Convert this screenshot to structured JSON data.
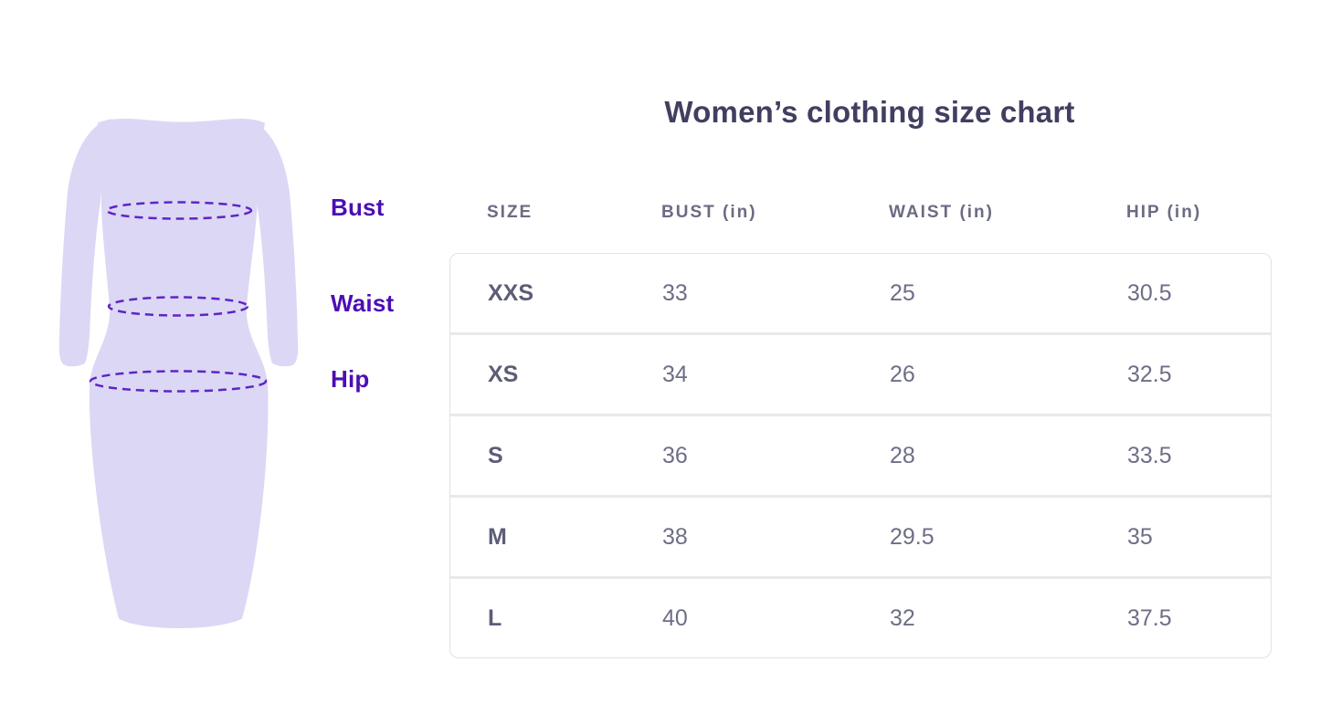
{
  "title": "Women’s clothing size chart",
  "figure": {
    "labels": [
      {
        "text": "Bust"
      },
      {
        "text": "Waist"
      },
      {
        "text": "Hip"
      }
    ],
    "colors": {
      "dress_fill": "#dcd7f5",
      "dashed_measure_line": "#5e25c4",
      "label_text": "#4d0db5"
    }
  },
  "colors": {
    "title_text": "#413f60",
    "header_text": "#6b6b83",
    "cell_text": "#6e6e87",
    "table_border": "#e2e2e8"
  },
  "chart_data": {
    "type": "table",
    "title": "Women’s clothing size chart",
    "columns": [
      "SIZE",
      "BUST (in)",
      "WAIST (in)",
      "HIP (in)"
    ],
    "rows": [
      {
        "size": "XXS",
        "bust": "33",
        "waist": "25",
        "hip": "30.5"
      },
      {
        "size": "XS",
        "bust": "34",
        "waist": "26",
        "hip": "32.5"
      },
      {
        "size": "S",
        "bust": "36",
        "waist": "28",
        "hip": "33.5"
      },
      {
        "size": "M",
        "bust": "38",
        "waist": "29.5",
        "hip": "35"
      },
      {
        "size": "L",
        "bust": "40",
        "waist": "32",
        "hip": "37.5"
      }
    ],
    "annotations": [
      "Bust",
      "Waist",
      "Hip"
    ],
    "layout": {
      "grid": "off",
      "header_outside_box": true
    }
  }
}
